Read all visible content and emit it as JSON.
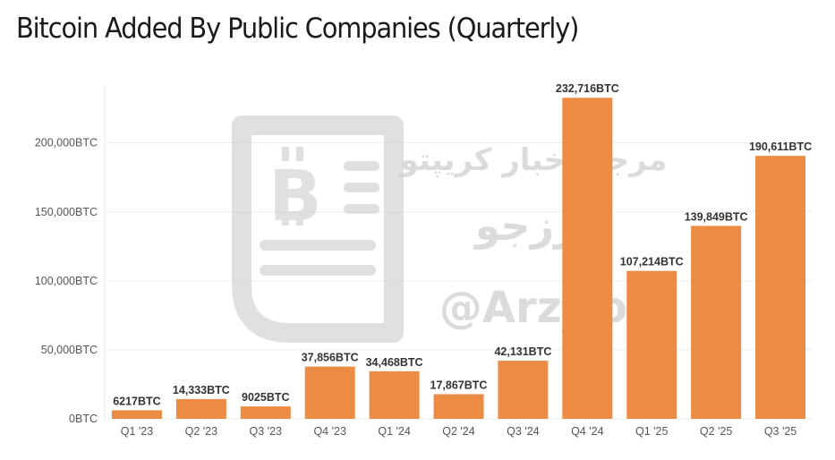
{
  "chart_data": {
    "type": "bar",
    "title": "Bitcoin Added By Public Companies (Quarterly)",
    "xlabel": "",
    "ylabel": "",
    "categories": [
      "Q1 '23",
      "Q2 '23",
      "Q3 '23",
      "Q4 '23",
      "Q1 '24",
      "Q2 '24",
      "Q3 '24",
      "Q4 '24",
      "Q1 '25",
      "Q2 '25",
      "Q3 '25"
    ],
    "values": [
      6217,
      14333,
      9025,
      37856,
      34468,
      17867,
      42131,
      232716,
      107214,
      139849,
      190611
    ],
    "data_labels": [
      "6217BTC",
      "14,333BTC",
      "9025BTC",
      "37,856BTC",
      "34,468BTC",
      "17,867BTC",
      "42,131BTC",
      "232,716BTC",
      "107,214BTC",
      "139,849BTC",
      "190,611BTC"
    ],
    "yticks": [
      0,
      50000,
      100000,
      150000,
      200000
    ],
    "ytick_labels": [
      "0BTC",
      "50,000BTC",
      "100,000BTC",
      "150,000BTC",
      "200,000BTC"
    ],
    "ylim": [
      0,
      240000
    ],
    "grid": true,
    "legend": "none",
    "bar_color": "#ec8b44"
  },
  "watermark": {
    "line1": "مرجع اخبار کریپتو",
    "line2": "ارزجو",
    "handle": "@Arz_jo"
  }
}
